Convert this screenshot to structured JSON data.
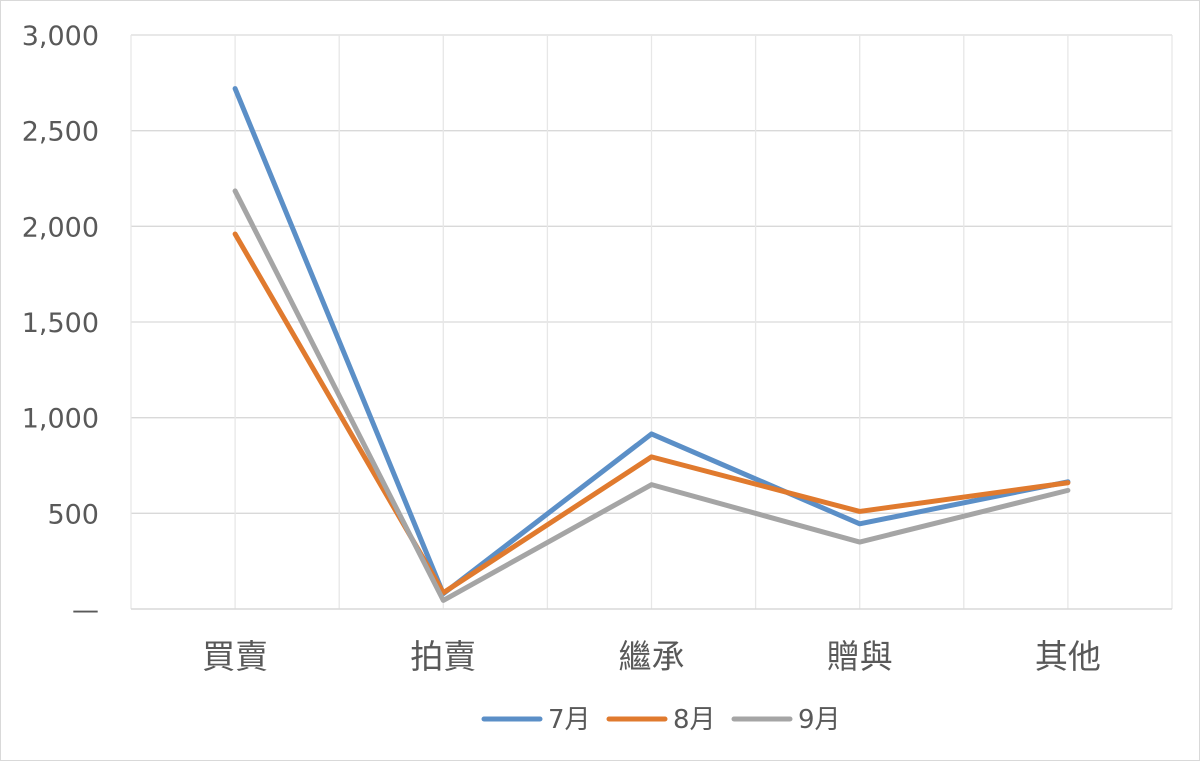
{
  "chart_data": {
    "type": "line",
    "categories": [
      "買賣",
      "拍賣",
      "繼承",
      "贈與",
      "其他"
    ],
    "y_tick_labels": [
      "—",
      "500",
      "1,000",
      "1,500",
      "2,000",
      "2,500",
      "3,000"
    ],
    "y_ticks": [
      0,
      500,
      1000,
      1500,
      2000,
      2500,
      3000
    ],
    "ylim": [
      0,
      3000
    ],
    "grid": true,
    "legend_position": "bottom",
    "series": [
      {
        "name": "7月",
        "color": "#5b8fc7",
        "values": [
          2720,
          80,
          915,
          445,
          665
        ]
      },
      {
        "name": "8月",
        "color": "#e07a2e",
        "values": [
          1960,
          85,
          795,
          510,
          660
        ]
      },
      {
        "name": "9月",
        "color": "#a5a5a5",
        "values": [
          2185,
          45,
          650,
          350,
          620
        ]
      }
    ]
  }
}
